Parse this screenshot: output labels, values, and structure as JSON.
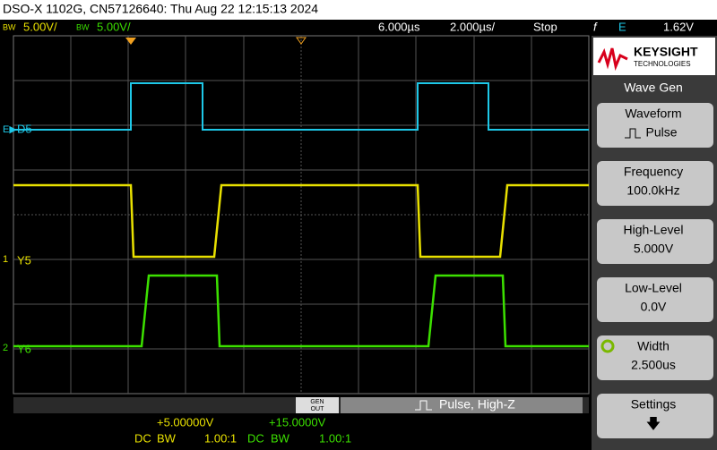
{
  "title_bar": "DSO-X 1102G, CN57126640: Thu Aug 22 12:15:13 2024",
  "status_bar": {
    "ch1_bw": "BW",
    "ch1_scale": "5.00V/",
    "ch2_bw": "BW",
    "ch2_scale": "5.00V/",
    "delay": "6.000µs",
    "timebase": "2.000µs/",
    "run_state": "Stop",
    "trigger_slope": "f",
    "trigger_source": "E",
    "trigger_level": "1.62V"
  },
  "channel_labels": {
    "digital": "D5",
    "digital_marker": "E▶",
    "ch1_number": "1",
    "ch1": "Y5",
    "ch2_number": "2",
    "ch2": "Y6"
  },
  "logo": {
    "brand": "KEYSIGHT",
    "sub": "TECHNOLOGIES"
  },
  "menu": {
    "title": "Wave Gen",
    "softkeys": [
      {
        "label": "Waveform",
        "value": "Pulse"
      },
      {
        "label": "Frequency",
        "value": "100.0kHz"
      },
      {
        "label": "High-Level",
        "value": "5.000V"
      },
      {
        "label": "Low-Level",
        "value": "0.0V"
      },
      {
        "label": "Width",
        "value": "2.500us"
      },
      {
        "label": "Settings",
        "value": "🡇"
      }
    ]
  },
  "gen_bar": {
    "button_top": "GEN",
    "button_bottom": "OUT",
    "status": "Pulse, High-Z"
  },
  "channel_info": [
    {
      "offset": "+5.00000V",
      "coupling": "DC",
      "bw": "BW",
      "probe": "1.00:1"
    },
    {
      "offset": "+15.0000V",
      "coupling": "DC",
      "bw": "BW",
      "probe": "1.00:1"
    }
  ]
}
